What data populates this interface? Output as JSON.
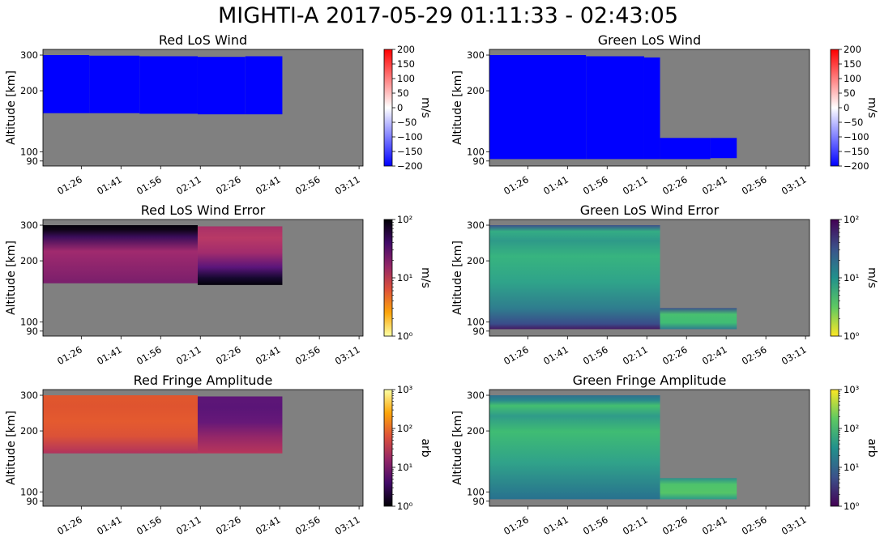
{
  "figure": {
    "title": "MIGHTI-A  2017-05-29 01:11:33 - 02:43:05",
    "background": "#ffffff",
    "plot_background": "#808080"
  },
  "chart_data": [
    {
      "type": "heatmap",
      "title": "Red LoS Wind",
      "ylabel": "Altitude [km]",
      "yticks": [
        90,
        100,
        200,
        300
      ],
      "ytick_labels": [
        "90",
        "100",
        "200",
        "300"
      ],
      "ylim": [
        85,
        320
      ],
      "yscale": "log",
      "xtick_labels": [
        "01:26",
        "01:41",
        "01:56",
        "02:11",
        "02:26",
        "02:41",
        "02:56",
        "03:11"
      ],
      "x_minutes": [
        86,
        101,
        116,
        131,
        146,
        161,
        176,
        191
      ],
      "xlim": [
        71.5,
        192.5
      ],
      "colormap": "bwr",
      "colorbar": {
        "label": "m/s",
        "scale": "linear",
        "range": [
          -200,
          200
        ],
        "ticks": [
          200,
          150,
          100,
          50,
          0,
          -50,
          -100,
          -150,
          -200
        ],
        "tick_labels": [
          "200",
          "150",
          "100",
          "50",
          "0",
          "−50",
          "−100",
          "−150",
          "−200"
        ],
        "stops": [
          "#0000ff",
          "#ffffff",
          "#ff0000"
        ]
      },
      "segments": [
        {
          "x": [
            71.5,
            89
          ],
          "ymin": 155,
          "ymax": 300,
          "color": "#0000ff"
        },
        {
          "x": [
            89,
            108
          ],
          "ymin": 155,
          "ymax": 298,
          "color": "#0000ff"
        },
        {
          "x": [
            108,
            130
          ],
          "ymin": 154,
          "ymax": 296,
          "color": "#0000ff"
        },
        {
          "x": [
            130,
            148
          ],
          "ymin": 153,
          "ymax": 294,
          "color": "#0000ff"
        },
        {
          "x": [
            148,
            162
          ],
          "ymin": 153,
          "ymax": 296,
          "color": "#0000ff"
        }
      ]
    },
    {
      "type": "heatmap",
      "title": "Green LoS Wind",
      "ylabel": "Altitude [km]",
      "yticks": [
        90,
        100,
        200,
        300
      ],
      "ytick_labels": [
        "90",
        "100",
        "200",
        "300"
      ],
      "ylim": [
        85,
        320
      ],
      "yscale": "log",
      "xtick_labels": [
        "01:26",
        "01:41",
        "01:56",
        "02:11",
        "02:26",
        "02:41",
        "02:56",
        "03:11"
      ],
      "x_minutes": [
        86,
        101,
        116,
        131,
        146,
        161,
        176,
        191
      ],
      "xlim": [
        71.5,
        192.5
      ],
      "colormap": "bwr",
      "colorbar": {
        "label": "m/s",
        "scale": "linear",
        "range": [
          -200,
          200
        ],
        "ticks": [
          200,
          150,
          100,
          50,
          0,
          -50,
          -100,
          -150,
          -200
        ],
        "tick_labels": [
          "200",
          "150",
          "100",
          "50",
          "0",
          "−50",
          "−100",
          "−150",
          "−200"
        ],
        "stops": [
          "#0000ff",
          "#ffffff",
          "#ff0000"
        ]
      },
      "segments": [
        {
          "x": [
            71.5,
            108
          ],
          "ymin": 92,
          "ymax": 300,
          "color": "#0000ff"
        },
        {
          "x": [
            108,
            130
          ],
          "ymin": 92,
          "ymax": 296,
          "color": "#0000ff"
        },
        {
          "x": [
            130,
            136
          ],
          "ymin": 92,
          "ymax": 292,
          "color": "#0000ff"
        },
        {
          "x": [
            136,
            155
          ],
          "ymin": 92,
          "ymax": 117,
          "color": "#0000ff"
        },
        {
          "x": [
            155,
            165
          ],
          "ymin": 93,
          "ymax": 117,
          "color": "#0000ff"
        }
      ]
    },
    {
      "type": "heatmap",
      "title": "Red LoS Wind Error",
      "ylabel": "Altitude [km]",
      "yticks": [
        90,
        100,
        200,
        300
      ],
      "ytick_labels": [
        "90",
        "100",
        "200",
        "300"
      ],
      "ylim": [
        85,
        320
      ],
      "yscale": "log",
      "xtick_labels": [
        "01:26",
        "01:41",
        "01:56",
        "02:11",
        "02:26",
        "02:41",
        "02:56",
        "03:11"
      ],
      "x_minutes": [
        86,
        101,
        116,
        131,
        146,
        161,
        176,
        191
      ],
      "xlim": [
        71.5,
        192.5
      ],
      "colormap": "inferno_r",
      "colorbar": {
        "label": "m/s",
        "scale": "log",
        "range": [
          1,
          100
        ],
        "tick_labels": [
          "10²",
          "10¹",
          "10⁰"
        ],
        "tick_values": [
          100,
          10,
          1
        ],
        "stops": [
          "#fcffa4",
          "#fca50a",
          "#dd513a",
          "#932667",
          "#420a68",
          "#000004"
        ]
      },
      "segments": [
        {
          "x": [
            71.5,
            130
          ],
          "ymin": 155,
          "ymax": 300,
          "gradient": [
            [
              0,
              "#7a1f6c"
            ],
            [
              0.55,
              "#a02a6e"
            ],
            [
              0.8,
              "#3a0d5a"
            ],
            [
              0.92,
              "#100418"
            ],
            [
              1,
              "#04010a"
            ]
          ]
        },
        {
          "x": [
            130,
            162
          ],
          "ymin": 152,
          "ymax": 296,
          "gradient": [
            [
              0,
              "#04010a"
            ],
            [
              0.12,
              "#160830"
            ],
            [
              0.3,
              "#5a157a"
            ],
            [
              0.55,
              "#a22c6d"
            ],
            [
              0.8,
              "#b83966"
            ],
            [
              1,
              "#a83168"
            ]
          ]
        }
      ]
    },
    {
      "type": "heatmap",
      "title": "Green LoS Wind Error",
      "ylabel": "Altitude [km]",
      "yticks": [
        90,
        100,
        200,
        300
      ],
      "ytick_labels": [
        "90",
        "100",
        "200",
        "300"
      ],
      "ylim": [
        85,
        320
      ],
      "yscale": "log",
      "xtick_labels": [
        "01:26",
        "01:41",
        "01:56",
        "02:11",
        "02:26",
        "02:41",
        "02:56",
        "03:11"
      ],
      "x_minutes": [
        86,
        101,
        116,
        131,
        146,
        161,
        176,
        191
      ],
      "xlim": [
        71.5,
        192.5
      ],
      "colormap": "viridis_r",
      "colorbar": {
        "label": "m/s",
        "scale": "log",
        "range": [
          1,
          100
        ],
        "tick_labels": [
          "10²",
          "10¹",
          "10⁰"
        ],
        "tick_values": [
          100,
          10,
          1
        ],
        "stops": [
          "#fde725",
          "#5ec962",
          "#21918c",
          "#3b528b",
          "#440154"
        ]
      },
      "segments": [
        {
          "x": [
            71.5,
            136
          ],
          "ymin": 92,
          "ymax": 300,
          "gradient": [
            [
              0,
              "#441a62"
            ],
            [
              0.05,
              "#3a4c8a"
            ],
            [
              0.2,
              "#2f7d8e"
            ],
            [
              0.45,
              "#2fa38a"
            ],
            [
              0.7,
              "#37b47f"
            ],
            [
              0.85,
              "#2e9a89"
            ],
            [
              0.94,
              "#34ad84"
            ],
            [
              1,
              "#3c508b"
            ]
          ]
        },
        {
          "x": [
            136,
            165
          ],
          "ymin": 92,
          "ymax": 117,
          "gradient": [
            [
              0,
              "#2f7d8e"
            ],
            [
              0.3,
              "#40bc74"
            ],
            [
              0.7,
              "#48c070"
            ],
            [
              1,
              "#3b528b"
            ]
          ]
        }
      ]
    },
    {
      "type": "heatmap",
      "title": "Red Fringe Amplitude",
      "ylabel": "Altitude [km]",
      "yticks": [
        90,
        100,
        200,
        300
      ],
      "ytick_labels": [
        "90",
        "100",
        "200",
        "300"
      ],
      "ylim": [
        85,
        320
      ],
      "yscale": "log",
      "xtick_labels": [
        "01:26",
        "01:41",
        "01:56",
        "02:11",
        "02:26",
        "02:41",
        "02:56",
        "03:11"
      ],
      "x_minutes": [
        86,
        101,
        116,
        131,
        146,
        161,
        176,
        191
      ],
      "xlim": [
        71.5,
        192.5
      ],
      "colormap": "inferno",
      "colorbar": {
        "label": "arb",
        "scale": "log",
        "range": [
          1,
          1000
        ],
        "tick_labels": [
          "10³",
          "10²",
          "10¹",
          "10⁰"
        ],
        "tick_values": [
          1000,
          100,
          10,
          1
        ],
        "stops": [
          "#000004",
          "#420a68",
          "#932667",
          "#dd513a",
          "#fca50a",
          "#fcffa4"
        ]
      },
      "segments": [
        {
          "x": [
            71.5,
            130
          ],
          "ymin": 155,
          "ymax": 300,
          "gradient": [
            [
              0,
              "#b0335e"
            ],
            [
              0.3,
              "#dc5237"
            ],
            [
              0.55,
              "#e45a2f"
            ],
            [
              0.8,
              "#df542f"
            ],
            [
              1,
              "#e0572d"
            ]
          ]
        },
        {
          "x": [
            130,
            162
          ],
          "ymin": 155,
          "ymax": 296,
          "gradient": [
            [
              0,
              "#b8365b"
            ],
            [
              0.3,
              "#922669"
            ],
            [
              0.55,
              "#661878"
            ],
            [
              0.8,
              "#5a1577"
            ],
            [
              1,
              "#5e1677"
            ]
          ]
        }
      ]
    },
    {
      "type": "heatmap",
      "title": "Green Fringe Amplitude",
      "ylabel": "Altitude [km]",
      "yticks": [
        90,
        100,
        200,
        300
      ],
      "ytick_labels": [
        "90",
        "100",
        "200",
        "300"
      ],
      "ylim": [
        85,
        320
      ],
      "yscale": "log",
      "xtick_labels": [
        "01:26",
        "01:41",
        "01:56",
        "02:11",
        "02:26",
        "02:41",
        "02:56",
        "03:11"
      ],
      "x_minutes": [
        86,
        101,
        116,
        131,
        146,
        161,
        176,
        191
      ],
      "xlim": [
        71.5,
        192.5
      ],
      "colormap": "viridis",
      "colorbar": {
        "label": "arb",
        "scale": "log",
        "range": [
          1,
          1000
        ],
        "tick_labels": [
          "10³",
          "10²",
          "10¹",
          "10⁰"
        ],
        "tick_values": [
          1000,
          100,
          10,
          1
        ],
        "stops": [
          "#440154",
          "#3b528b",
          "#21918c",
          "#5ec962",
          "#fde725"
        ]
      },
      "segments": [
        {
          "x": [
            71.5,
            136
          ],
          "ymin": 92,
          "ymax": 300,
          "gradient": [
            [
              0,
              "#28718e"
            ],
            [
              0.35,
              "#30a28a"
            ],
            [
              0.65,
              "#3fbc73"
            ],
            [
              0.8,
              "#2f9b89"
            ],
            [
              0.9,
              "#44bf70"
            ],
            [
              0.95,
              "#2a8a8c"
            ],
            [
              1,
              "#30708e"
            ]
          ]
        },
        {
          "x": [
            136,
            165
          ],
          "ymin": 92,
          "ymax": 117,
          "gradient": [
            [
              0,
              "#2f9b89"
            ],
            [
              0.3,
              "#54c568"
            ],
            [
              0.7,
              "#4ec36b"
            ],
            [
              1,
              "#2e8f8c"
            ]
          ]
        }
      ]
    }
  ]
}
